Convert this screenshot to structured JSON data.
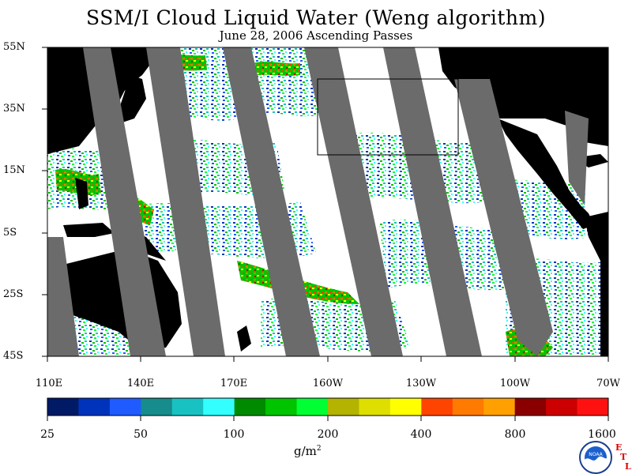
{
  "title": "SSM/I Cloud Liquid Water (Weng algorithm)",
  "subtitle": "June 28, 2006  Ascending Passes",
  "lat_labels": [
    "55N",
    "35N",
    "15N",
    "5S",
    "25S",
    "45S"
  ],
  "lon_labels": [
    "110E",
    "140E",
    "170E",
    "160W",
    "130W",
    "100W",
    "70W"
  ],
  "colorbar": {
    "labels": [
      "25",
      "50",
      "100",
      "200",
      "400",
      "800",
      "1600"
    ],
    "units_base": "g/m",
    "units_exp": "2",
    "colors": [
      "#001a66",
      "#0033bb",
      "#1f5bff",
      "#178c8c",
      "#19c2c2",
      "#33ffff",
      "#008a00",
      "#00c400",
      "#00ff33",
      "#b3b300",
      "#dede00",
      "#ffff00",
      "#ff4400",
      "#ff7a00",
      "#ffa000",
      "#8a0000",
      "#cc0000",
      "#ff1111"
    ]
  },
  "map_colors": {
    "ocean": "#ffffff",
    "land": "#000000",
    "no_data_swath": "#6b6b6b"
  },
  "logo": {
    "agency_text": "NOAA",
    "lab_letters": [
      "E",
      "T",
      "L"
    ]
  }
}
